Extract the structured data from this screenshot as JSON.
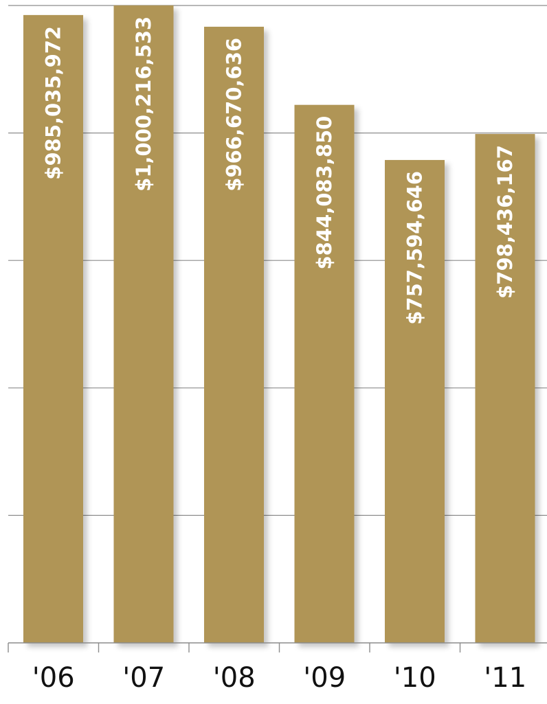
{
  "chart_data": {
    "type": "bar",
    "categories": [
      "'06",
      "'07",
      "'08",
      "'09",
      "'10",
      "'11"
    ],
    "values": [
      985035972,
      1000216533,
      966670636,
      844083850,
      757594646,
      798436167
    ],
    "data_labels": [
      "$985,035,972",
      "$1,000,216,533",
      "$966,670,636",
      "$844,083,850",
      "$757,594,646",
      "$798,436,167"
    ],
    "title": "",
    "xlabel": "",
    "ylabel": "",
    "ylim": [
      0,
      1000000000
    ],
    "grid": true,
    "bar_color": "#b09557",
    "shadow_color": "#d9d2c2",
    "legend": "none"
  }
}
